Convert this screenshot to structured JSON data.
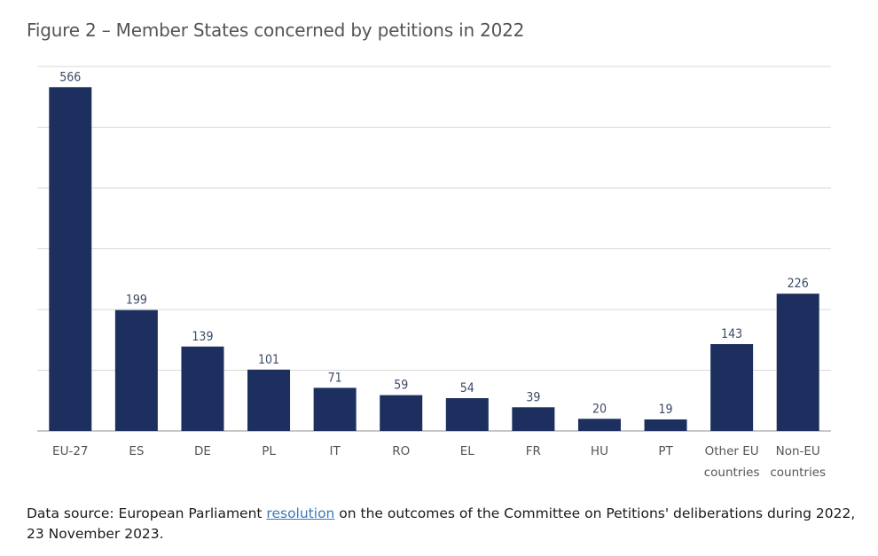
{
  "chart_data": {
    "type": "bar",
    "title": "Figure 2 – Member States concerned by petitions in 2022",
    "categories": [
      [
        "EU-27"
      ],
      [
        "ES"
      ],
      [
        "DE"
      ],
      [
        "PL"
      ],
      [
        "IT"
      ],
      [
        "RO"
      ],
      [
        "EL"
      ],
      [
        "FR"
      ],
      [
        "HU"
      ],
      [
        "PT"
      ],
      [
        "Other EU",
        "countries"
      ],
      [
        "Non-EU",
        "countries"
      ]
    ],
    "values": [
      566,
      199,
      139,
      101,
      71,
      59,
      54,
      39,
      20,
      19,
      143,
      226
    ],
    "ylim": [
      0,
      600
    ],
    "grid": true,
    "y_tick_labels_shown": false,
    "bar_color": "#1c2f5e",
    "grid_color": "#d9d9d9"
  },
  "source": {
    "prefix": "Data source: European Parliament ",
    "link": "resolution",
    "suffix": " on the outcomes of the Committee on Petitions' deliberations during 2022, 23 November 2023."
  }
}
